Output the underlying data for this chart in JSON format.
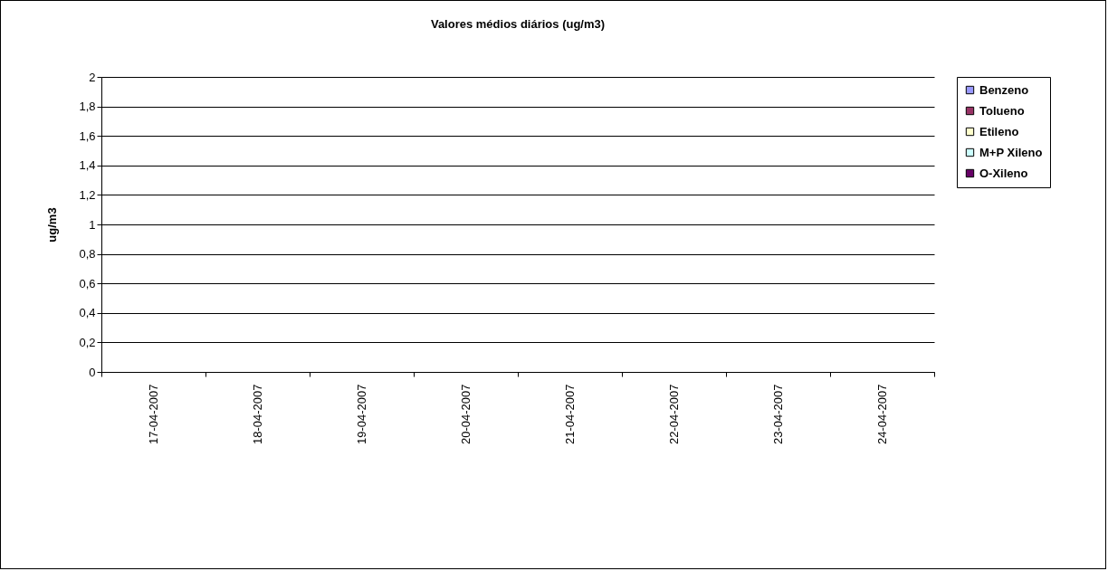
{
  "chart_data": {
    "type": "bar",
    "title": "Valores médios diários (ug/m3)",
    "ylabel": "ug/m3",
    "categories": [
      "17-04-2007",
      "18-04-2007",
      "19-04-2007",
      "20-04-2007",
      "21-04-2007",
      "22-04-2007",
      "23-04-2007",
      "24-04-2007"
    ],
    "series": [
      {
        "name": "Benzeno",
        "color": "#9999ff",
        "values": [
          0,
          0,
          0,
          0,
          0,
          0,
          0,
          0
        ]
      },
      {
        "name": "Tolueno",
        "color": "#993366",
        "values": [
          0,
          0,
          0,
          0,
          0,
          0,
          0,
          0
        ]
      },
      {
        "name": "Etileno",
        "color": "#ffffcc",
        "values": [
          0,
          0,
          0,
          0,
          0,
          0,
          0,
          0
        ]
      },
      {
        "name": "M+P Xileno",
        "color": "#ccffff",
        "values": [
          0,
          0,
          0,
          0,
          0,
          0,
          0,
          0
        ]
      },
      {
        "name": "O-Xileno",
        "color": "#660066",
        "values": [
          0,
          0,
          0,
          0,
          0,
          0,
          0,
          0
        ]
      }
    ],
    "ylim": [
      0,
      2
    ],
    "yticks": [
      0,
      {
        "value": 0.2,
        "label": "0,2"
      },
      {
        "value": 0.4,
        "label": "0,4"
      },
      {
        "value": 0.6,
        "label": "0,6"
      },
      {
        "value": 0.8,
        "label": "0,8"
      },
      1,
      {
        "value": 1.2,
        "label": "1,2"
      },
      {
        "value": 1.4,
        "label": "1,4"
      },
      {
        "value": 1.6,
        "label": "1,6"
      },
      {
        "value": 1.8,
        "label": "1,8"
      },
      2
    ],
    "grid": "y",
    "legend": "right"
  }
}
